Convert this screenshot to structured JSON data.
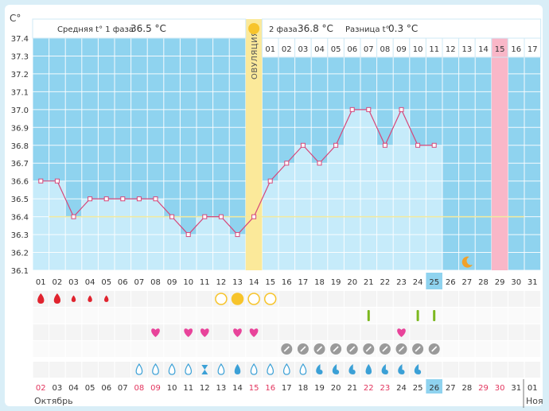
{
  "header": {
    "unit_label": "С°",
    "phase1_prefix": "Средняя t° 1 фаза",
    "phase1_value": "36.5 °C",
    "phase2_prefix": "2 фаза",
    "phase2_value": "36.8 °C",
    "diff_prefix": "Разница t°",
    "diff_value": "0.3 °C",
    "ovulation_label": "ОВУЛЯЦИЯ"
  },
  "chart_data": {
    "type": "line",
    "ylim": [
      36.1,
      37.4
    ],
    "yticks": [
      "37.4",
      "37.3",
      "37.2",
      "37.1",
      "37.0",
      "36.9",
      "36.8",
      "36.7",
      "36.6",
      "36.5",
      "36.4",
      "36.3",
      "36.2",
      "36.1"
    ],
    "cycle_days": [
      "01",
      "02",
      "03",
      "04",
      "05",
      "06",
      "07",
      "08",
      "09",
      "10",
      "11",
      "12",
      "13",
      "14",
      "15",
      "16",
      "17",
      "18",
      "19",
      "20",
      "21",
      "22",
      "23",
      "24",
      "25",
      "26",
      "27",
      "28",
      "29",
      "30",
      "31"
    ],
    "phase2_days": [
      "01",
      "02",
      "03",
      "04",
      "05",
      "06",
      "07",
      "08",
      "09",
      "10",
      "11",
      "12",
      "13",
      "14",
      "15",
      "16",
      "17"
    ],
    "today_index": 24,
    "ovulation_index": 13,
    "period_expected_index": 28,
    "cover_line": 36.4,
    "temperatures": [
      36.6,
      36.6,
      36.4,
      36.5,
      36.5,
      36.5,
      36.5,
      36.5,
      36.4,
      36.3,
      36.4,
      36.4,
      36.3,
      36.4,
      36.6,
      36.7,
      36.8,
      36.7,
      36.8,
      37.0,
      37.0,
      36.8,
      37.0,
      36.8,
      36.8
    ],
    "calendar_dates": [
      "02",
      "03",
      "04",
      "05",
      "06",
      "07",
      "08",
      "09",
      "10",
      "11",
      "12",
      "13",
      "14",
      "15",
      "16",
      "17",
      "18",
      "19",
      "20",
      "21",
      "22",
      "23",
      "24",
      "25",
      "26",
      "27",
      "28",
      "29",
      "30",
      "31",
      "01"
    ],
    "weekend_indices": [
      0,
      6,
      7,
      13,
      14,
      20,
      21,
      27,
      28
    ],
    "month_label": "Октябрь",
    "next_month_label": "Ноя"
  },
  "symbols": {
    "bleeding": [
      {
        "i": 0,
        "size": "large"
      },
      {
        "i": 1,
        "size": "large"
      },
      {
        "i": 2,
        "size": "small"
      },
      {
        "i": 3,
        "size": "small"
      },
      {
        "i": 4,
        "size": "small"
      }
    ],
    "cervix": [
      {
        "i": 11,
        "filled": false
      },
      {
        "i": 12,
        "filled": true
      },
      {
        "i": 13,
        "filled": false
      },
      {
        "i": 14,
        "filled": false
      }
    ],
    "tests": [
      20,
      23,
      24
    ],
    "sex": [
      7,
      9,
      10,
      12,
      13,
      22
    ],
    "pills": [
      15,
      16,
      17,
      18,
      19,
      20,
      21,
      22,
      23,
      24
    ],
    "mucus": [
      {
        "i": 6,
        "t": "outline"
      },
      {
        "i": 7,
        "t": "outline"
      },
      {
        "i": 8,
        "t": "outline"
      },
      {
        "i": 9,
        "t": "outline"
      },
      {
        "i": 10,
        "t": "hourglass"
      },
      {
        "i": 11,
        "t": "outline"
      },
      {
        "i": 12,
        "t": "filled"
      },
      {
        "i": 13,
        "t": "outline"
      },
      {
        "i": 14,
        "t": "outline"
      },
      {
        "i": 15,
        "t": "outline"
      },
      {
        "i": 16,
        "t": "outline"
      },
      {
        "i": 17,
        "t": "curl"
      },
      {
        "i": 18,
        "t": "curl"
      },
      {
        "i": 19,
        "t": "curl"
      },
      {
        "i": 20,
        "t": "filled"
      },
      {
        "i": 21,
        "t": "curl"
      },
      {
        "i": 22,
        "t": "curl"
      },
      {
        "i": 23,
        "t": "curl"
      }
    ],
    "moon_index": 26
  },
  "colors": {
    "bg_blue": "#8fd3ef",
    "bar_light": "#c6ebfa",
    "grid_white": "#ffffff",
    "ovulation_yellow": "#fbe99a",
    "period_pink": "#f9b7c8",
    "today_blue": "#8fd3ef",
    "temp_line": "#d6477a",
    "cover_line": "#f3ea9e",
    "weekend_red": "#e2355e",
    "drop_red": "#e0232e",
    "heart_pink": "#e8439a",
    "test_green": "#7cb81f",
    "pill_gray": "#9a9a9a",
    "mucus_blue": "#3ba0d6",
    "sun": "#f7c42b",
    "moon": "#f0a12a"
  }
}
